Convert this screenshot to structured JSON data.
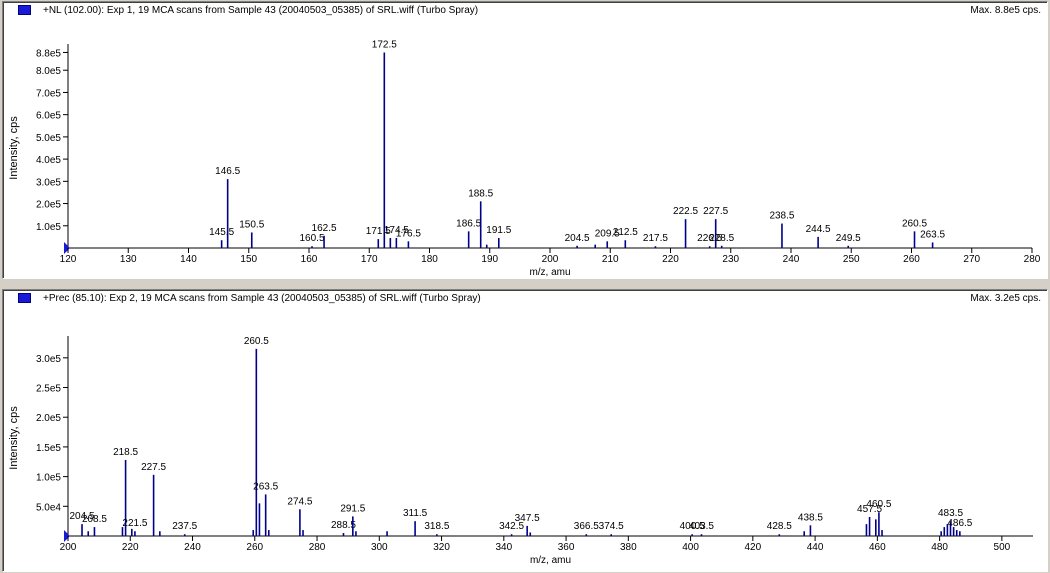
{
  "colors": {
    "peak": "#00008b",
    "axis": "#000000",
    "header_swatch": "#1a1ad6"
  },
  "panes": [
    {
      "title": "+NL (102.00): Exp 1, 19 MCA scans from Sample 43 (20040503_05385) of SRL.wiff (Turbo Spray)",
      "max_label": "Max. 8.8e5 cps."
    },
    {
      "title": "+Prec (85.10): Exp 2, 19 MCA scans from Sample 43 (20040503_05385) of SRL.wiff (Turbo Spray)",
      "max_label": "Max. 3.2e5 cps."
    }
  ],
  "chart_data": [
    {
      "type": "bar",
      "xlabel": "m/z, amu",
      "ylabel": "Intensity, cps",
      "xlim": [
        120,
        280
      ],
      "ylim": [
        0,
        900000
      ],
      "xticks": [
        120,
        130,
        140,
        150,
        160,
        170,
        180,
        190,
        200,
        210,
        220,
        230,
        240,
        250,
        260,
        270,
        280
      ],
      "yticks": [
        {
          "value": 100000,
          "label": "1.0e5"
        },
        {
          "value": 200000,
          "label": "2.0e5"
        },
        {
          "value": 300000,
          "label": "3.0e5"
        },
        {
          "value": 400000,
          "label": "4.0e5"
        },
        {
          "value": 500000,
          "label": "5.0e5"
        },
        {
          "value": 600000,
          "label": "6.0e5"
        },
        {
          "value": 700000,
          "label": "7.0e5"
        },
        {
          "value": 800000,
          "label": "8.0e5"
        },
        {
          "value": 880000,
          "label": "8.8e5"
        }
      ],
      "peaks": [
        {
          "x": 145.5,
          "y": 35000,
          "label": "145.5"
        },
        {
          "x": 146.5,
          "y": 310000,
          "label": "146.5"
        },
        {
          "x": 150.5,
          "y": 70000,
          "label": "150.5"
        },
        {
          "x": 160.5,
          "y": 8000,
          "label": "160.5"
        },
        {
          "x": 162.5,
          "y": 55000,
          "label": "162.5"
        },
        {
          "x": 171.5,
          "y": 40000,
          "label": "171.5"
        },
        {
          "x": 172.5,
          "y": 880000,
          "label": "172.5"
        },
        {
          "x": 173.5,
          "y": 45000
        },
        {
          "x": 174.5,
          "y": 45000,
          "label": "174.5"
        },
        {
          "x": 176.5,
          "y": 30000,
          "label": "176.5"
        },
        {
          "x": 186.5,
          "y": 75000,
          "label": "186.5"
        },
        {
          "x": 188.5,
          "y": 210000,
          "label": "188.5"
        },
        {
          "x": 189.5,
          "y": 15000
        },
        {
          "x": 191.5,
          "y": 45000,
          "label": "191.5"
        },
        {
          "x": 204.5,
          "y": 10000,
          "label": "204.5"
        },
        {
          "x": 207.5,
          "y": 15000
        },
        {
          "x": 209.5,
          "y": 30000,
          "label": "209.5"
        },
        {
          "x": 212.5,
          "y": 35000,
          "label": "212.5"
        },
        {
          "x": 217.5,
          "y": 8000,
          "label": "217.5"
        },
        {
          "x": 222.5,
          "y": 130000,
          "label": "222.5"
        },
        {
          "x": 226.5,
          "y": 8000,
          "label": "226.5"
        },
        {
          "x": 227.5,
          "y": 130000,
          "label": "227.5"
        },
        {
          "x": 228.5,
          "y": 10000,
          "label": "228.5"
        },
        {
          "x": 238.5,
          "y": 110000,
          "label": "238.5"
        },
        {
          "x": 244.5,
          "y": 50000,
          "label": "244.5"
        },
        {
          "x": 249.5,
          "y": 10000,
          "label": "249.5"
        },
        {
          "x": 260.5,
          "y": 75000,
          "label": "260.5"
        },
        {
          "x": 263.5,
          "y": 25000,
          "label": "263.5"
        }
      ]
    },
    {
      "type": "bar",
      "xlabel": "m/z, amu",
      "ylabel": "Intensity, cps",
      "xlim": [
        200,
        510
      ],
      "ylim": [
        0,
        330000
      ],
      "xticks": [
        200,
        220,
        240,
        260,
        280,
        300,
        320,
        340,
        360,
        380,
        400,
        420,
        440,
        460,
        480,
        500
      ],
      "yticks": [
        {
          "value": 50000,
          "label": "5.0e4"
        },
        {
          "value": 100000,
          "label": "1.0e5"
        },
        {
          "value": 150000,
          "label": "1.5e5"
        },
        {
          "value": 200000,
          "label": "2.0e5"
        },
        {
          "value": 250000,
          "label": "2.5e5"
        },
        {
          "value": 300000,
          "label": "3.0e5"
        }
      ],
      "peaks": [
        {
          "x": 204.5,
          "y": 20000,
          "label": "204.5"
        },
        {
          "x": 206.5,
          "y": 8000
        },
        {
          "x": 208.5,
          "y": 15000,
          "label": "208.5"
        },
        {
          "x": 217.5,
          "y": 15000
        },
        {
          "x": 218.5,
          "y": 128000,
          "label": "218.5"
        },
        {
          "x": 220.5,
          "y": 12000
        },
        {
          "x": 221.5,
          "y": 8000,
          "label": "221.5"
        },
        {
          "x": 227.5,
          "y": 103000,
          "label": "227.5"
        },
        {
          "x": 229.5,
          "y": 8000
        },
        {
          "x": 237.5,
          "y": 3000,
          "label": "237.5"
        },
        {
          "x": 259.5,
          "y": 10000
        },
        {
          "x": 260.5,
          "y": 315000,
          "label": "260.5"
        },
        {
          "x": 261.5,
          "y": 55000
        },
        {
          "x": 263.5,
          "y": 70000,
          "label": "263.5"
        },
        {
          "x": 264.5,
          "y": 10000
        },
        {
          "x": 274.5,
          "y": 45000,
          "label": "274.5"
        },
        {
          "x": 275.5,
          "y": 10000
        },
        {
          "x": 288.5,
          "y": 5000,
          "label": "288.5"
        },
        {
          "x": 291.5,
          "y": 33000,
          "label": "291.5"
        },
        {
          "x": 292.5,
          "y": 8000
        },
        {
          "x": 302.5,
          "y": 8000
        },
        {
          "x": 311.5,
          "y": 25000,
          "label": "311.5"
        },
        {
          "x": 318.5,
          "y": 3000,
          "label": "318.5"
        },
        {
          "x": 342.5,
          "y": 3000,
          "label": "342.5"
        },
        {
          "x": 347.5,
          "y": 17000,
          "label": "347.5"
        },
        {
          "x": 348.5,
          "y": 6000
        },
        {
          "x": 366.5,
          "y": 3000,
          "label": "366.5"
        },
        {
          "x": 374.5,
          "y": 3000,
          "label": "374.5"
        },
        {
          "x": 400.5,
          "y": 3000,
          "label": "400.5"
        },
        {
          "x": 403.5,
          "y": 3000,
          "label": "403.5"
        },
        {
          "x": 428.5,
          "y": 3000,
          "label": "428.5"
        },
        {
          "x": 436.5,
          "y": 8000
        },
        {
          "x": 438.5,
          "y": 18000,
          "label": "438.5"
        },
        {
          "x": 456.5,
          "y": 20000
        },
        {
          "x": 457.5,
          "y": 32000,
          "label": "457.5"
        },
        {
          "x": 459.5,
          "y": 28000
        },
        {
          "x": 460.5,
          "y": 40000,
          "label": "460.5"
        },
        {
          "x": 461.5,
          "y": 10000
        },
        {
          "x": 480.5,
          "y": 8000
        },
        {
          "x": 481.5,
          "y": 15000
        },
        {
          "x": 482.5,
          "y": 20000
        },
        {
          "x": 483.5,
          "y": 25000,
          "label": "483.5"
        },
        {
          "x": 484.5,
          "y": 15000
        },
        {
          "x": 485.5,
          "y": 10000
        },
        {
          "x": 486.5,
          "y": 8000,
          "label": "486.5"
        }
      ]
    }
  ]
}
